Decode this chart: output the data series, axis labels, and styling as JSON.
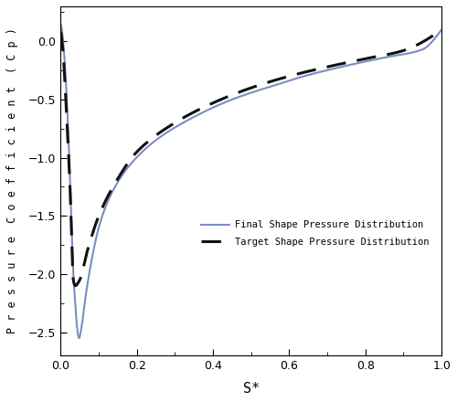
{
  "title": "",
  "xlabel": "S*",
  "ylabel": "P r e s s u r e  C o e f f i c i e n t  ( C p )",
  "xlim": [
    0,
    1.0
  ],
  "ylim": [
    -2.7,
    0.3
  ],
  "yticks": [
    0,
    -0.5,
    -1.0,
    -1.5,
    -2.0,
    -2.5
  ],
  "xticks": [
    0,
    0.2,
    0.4,
    0.6,
    0.8,
    1.0
  ],
  "target_color": "#111111",
  "final_color": "#7b8cc4",
  "legend_labels": [
    "Target Shape Pressure Distribution",
    "Final Shape Pressure Distribution"
  ],
  "figsize": [
    5.0,
    4.4
  ],
  "dpi": 100,
  "target_points_s": [
    0.0,
    0.005,
    0.015,
    0.025,
    0.033,
    0.038,
    0.05,
    0.07,
    0.1,
    0.15,
    0.2,
    0.3,
    0.4,
    0.5,
    0.6,
    0.7,
    0.8,
    0.9,
    1.0
  ],
  "target_points_cp": [
    0.08,
    -0.05,
    -0.6,
    -1.3,
    -2.05,
    -2.1,
    -2.05,
    -1.8,
    -1.5,
    -1.18,
    -0.95,
    -0.7,
    -0.53,
    -0.4,
    -0.3,
    -0.22,
    -0.15,
    -0.08,
    0.1
  ],
  "final_points_s": [
    0.0,
    0.003,
    0.01,
    0.02,
    0.035,
    0.048,
    0.055,
    0.065,
    0.08,
    0.1,
    0.13,
    0.18,
    0.25,
    0.35,
    0.45,
    0.55,
    0.65,
    0.75,
    0.85,
    0.95,
    1.0
  ],
  "final_points_cp": [
    0.15,
    0.1,
    -0.15,
    -0.8,
    -2.1,
    -2.55,
    -2.45,
    -2.2,
    -1.9,
    -1.6,
    -1.33,
    -1.07,
    -0.85,
    -0.65,
    -0.5,
    -0.39,
    -0.29,
    -0.21,
    -0.14,
    -0.07,
    0.1
  ]
}
